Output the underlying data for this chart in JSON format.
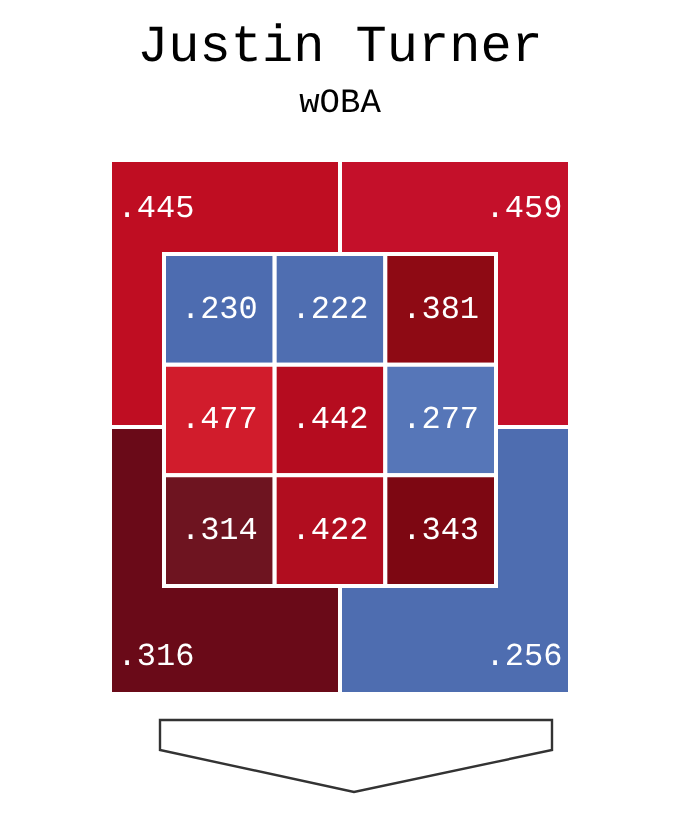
{
  "chart_data": [
    {
      "type": "heatmap",
      "title": "Justin Turner",
      "subtitle": "wOBA",
      "categories": [
        null,
        null
      ],
      "y_categories": [
        null,
        null
      ],
      "cells": [
        [
          0.445,
          0.459
        ],
        [
          0.316,
          0.256
        ]
      ],
      "cell_labels": [
        [
          ".445",
          ".459"
        ],
        [
          ".316",
          ".256"
        ]
      ],
      "colors": [
        [
          "#bf0d22",
          "#c4102a"
        ],
        [
          "#6a0a18",
          "#4e6db0"
        ]
      ]
    },
    {
      "type": "heatmap",
      "categories": [
        null,
        null,
        null
      ],
      "y_categories": [
        null,
        null,
        null
      ],
      "cells": [
        [
          0.23,
          0.222,
          0.381
        ],
        [
          0.477,
          0.442,
          0.277
        ],
        [
          0.314,
          0.422,
          0.343
        ]
      ],
      "cell_labels": [
        [
          ".230",
          ".222",
          ".381"
        ],
        [
          ".477",
          ".442",
          ".277"
        ],
        [
          ".314",
          ".422",
          ".343"
        ]
      ],
      "colors": [
        [
          "#4d6cb0",
          "#4f6eb1",
          "#8e0a14"
        ],
        [
          "#d11c2c",
          "#b50c1f",
          "#5676b8"
        ],
        [
          "#6e1420",
          "#b10d1f",
          "#7d0712"
        ]
      ]
    }
  ]
}
